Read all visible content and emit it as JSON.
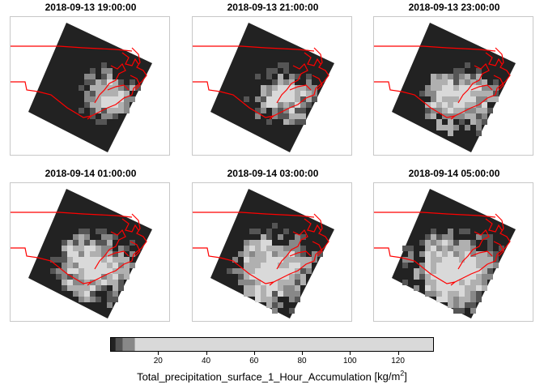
{
  "panels": [
    {
      "title": "2018-09-13 19:00:00",
      "stage": 0
    },
    {
      "title": "2018-09-13 21:00:00",
      "stage": 1
    },
    {
      "title": "2018-09-13 23:00:00",
      "stage": 2
    },
    {
      "title": "2018-09-14 01:00:00",
      "stage": 3
    },
    {
      "title": "2018-09-14 03:00:00",
      "stage": 4
    },
    {
      "title": "2018-09-14 05:00:00",
      "stage": 5
    }
  ],
  "colors": {
    "background": "#222222",
    "coastline": "#ff0000",
    "panel_border": "#c8c8c8",
    "colorbar_levels": [
      "#222222",
      "#555555",
      "#888888",
      "#b0b0b0",
      "#d9d9d9"
    ]
  },
  "legend": {
    "ticks": [
      20,
      40,
      60,
      80,
      100,
      120
    ],
    "range": [
      0,
      135
    ],
    "breaks": [
      0,
      2,
      5,
      10,
      135
    ],
    "title_prefix": "Total_precipitation_surface_1_Hour_Accumulation",
    "unit_base": "kg/m",
    "unit_exp": "2"
  }
}
